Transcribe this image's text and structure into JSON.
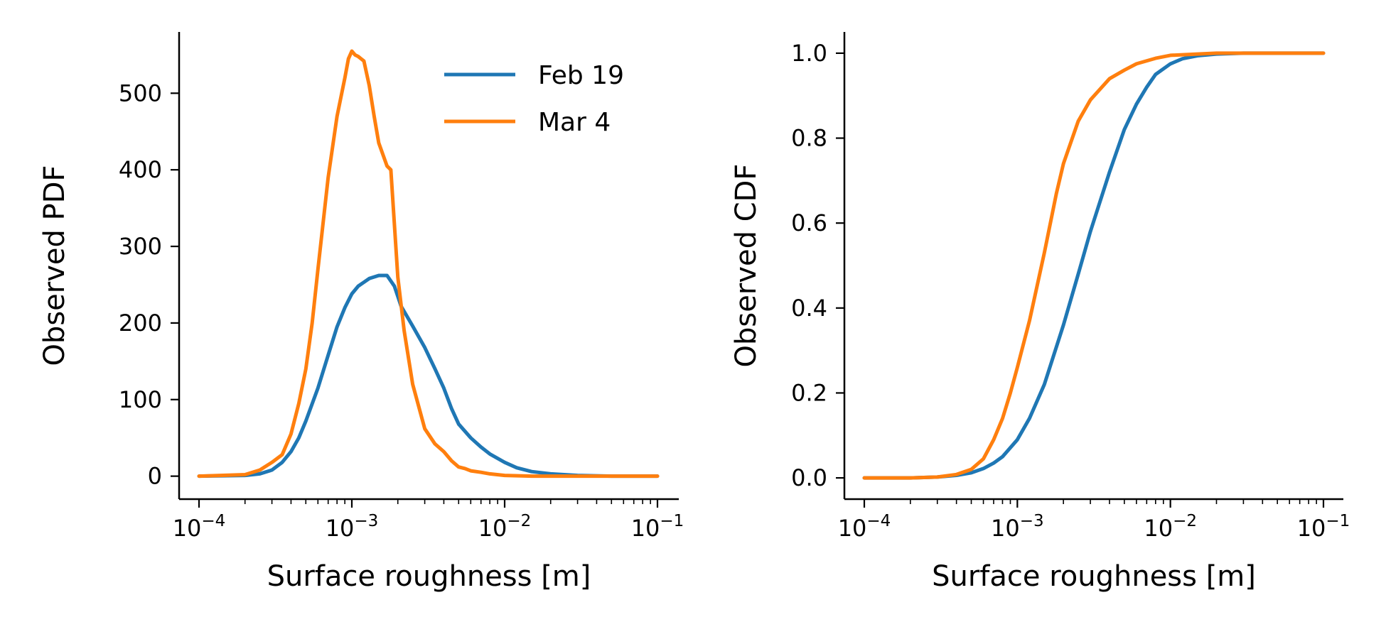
{
  "colors": {
    "feb19": "#1f77b4",
    "mar4": "#ff7f0e",
    "axis": "#000000",
    "background": "#ffffff"
  },
  "chart_data": [
    {
      "type": "line",
      "xscale": "log",
      "xlabel": "Surface roughness [m]",
      "ylabel": "Observed PDF",
      "xlim": [
        0.0001,
        0.1
      ],
      "ylim": [
        -30,
        580
      ],
      "xticks": [
        {
          "base": "10",
          "exp": "−4",
          "value": 0.0001
        },
        {
          "base": "10",
          "exp": "−3",
          "value": 0.001
        },
        {
          "base": "10",
          "exp": "−2",
          "value": 0.01
        },
        {
          "base": "10",
          "exp": "−1",
          "value": 0.1
        }
      ],
      "yticks": [
        {
          "label": "0",
          "value": 0
        },
        {
          "label": "100",
          "value": 100
        },
        {
          "label": "200",
          "value": 200
        },
        {
          "label": "300",
          "value": 300
        },
        {
          "label": "400",
          "value": 400
        },
        {
          "label": "500",
          "value": 500
        }
      ],
      "legend": {
        "location": "upper right",
        "entries": [
          "Feb 19",
          "Mar 4"
        ]
      },
      "grid": false,
      "series": [
        {
          "name": "Feb 19",
          "color": "#1f77b4",
          "x": [
            0.0001,
            0.0002,
            0.00025,
            0.0003,
            0.00035,
            0.0004,
            0.00045,
            0.0005,
            0.0006,
            0.0007,
            0.0008,
            0.0009,
            0.001,
            0.0011,
            0.0013,
            0.0015,
            0.0017,
            0.0019,
            0.0021,
            0.0025,
            0.003,
            0.0035,
            0.004,
            0.0045,
            0.005,
            0.006,
            0.007,
            0.008,
            0.01,
            0.012,
            0.015,
            0.02,
            0.03,
            0.05,
            0.1
          ],
          "y": [
            0,
            1,
            3,
            8,
            18,
            32,
            50,
            72,
            115,
            158,
            195,
            220,
            238,
            248,
            258,
            262,
            262,
            248,
            222,
            196,
            168,
            140,
            115,
            88,
            68,
            50,
            38,
            29,
            18,
            11,
            6,
            3,
            1,
            0,
            0
          ]
        },
        {
          "name": "Mar 4",
          "color": "#ff7f0e",
          "x": [
            0.0001,
            0.0002,
            0.00025,
            0.0003,
            0.00035,
            0.0004,
            0.00045,
            0.0005,
            0.00055,
            0.0006,
            0.0007,
            0.0008,
            0.0009,
            0.00095,
            0.001,
            0.00105,
            0.0011,
            0.0012,
            0.0013,
            0.0014,
            0.0015,
            0.0017,
            0.0018,
            0.002,
            0.0022,
            0.0025,
            0.003,
            0.0035,
            0.004,
            0.0045,
            0.005,
            0.0055,
            0.006,
            0.007,
            0.008,
            0.01,
            0.015,
            0.02,
            0.05,
            0.1
          ],
          "y": [
            0,
            2,
            8,
            18,
            28,
            55,
            95,
            140,
            200,
            270,
            390,
            470,
            520,
            545,
            555,
            550,
            548,
            542,
            510,
            470,
            435,
            405,
            400,
            260,
            190,
            120,
            62,
            42,
            32,
            20,
            12,
            10,
            7,
            5,
            3,
            1,
            0,
            0,
            0,
            0
          ]
        }
      ]
    },
    {
      "type": "line",
      "xscale": "log",
      "xlabel": "Surface roughness [m]",
      "ylabel": "Observed CDF",
      "xlim": [
        0.0001,
        0.1
      ],
      "ylim": [
        -0.05,
        1.05
      ],
      "xticks": [
        {
          "base": "10",
          "exp": "−4",
          "value": 0.0001
        },
        {
          "base": "10",
          "exp": "−3",
          "value": 0.001
        },
        {
          "base": "10",
          "exp": "−2",
          "value": 0.01
        },
        {
          "base": "10",
          "exp": "−1",
          "value": 0.1
        }
      ],
      "yticks": [
        {
          "label": "0.0",
          "value": 0
        },
        {
          "label": "0.2",
          "value": 0.2
        },
        {
          "label": "0.4",
          "value": 0.4
        },
        {
          "label": "0.6",
          "value": 0.6
        },
        {
          "label": "0.8",
          "value": 0.8
        },
        {
          "label": "1.0",
          "value": 1.0
        }
      ],
      "grid": false,
      "series": [
        {
          "name": "Feb 19",
          "color": "#1f77b4",
          "x": [
            0.0001,
            0.0002,
            0.0003,
            0.0004,
            0.0005,
            0.0006,
            0.0007,
            0.0008,
            0.001,
            0.0012,
            0.0015,
            0.002,
            0.0025,
            0.003,
            0.004,
            0.005,
            0.006,
            0.007,
            0.008,
            0.01,
            0.012,
            0.015,
            0.02,
            0.03,
            0.05,
            0.1
          ],
          "y": [
            0,
            0,
            0.002,
            0.006,
            0.012,
            0.022,
            0.035,
            0.05,
            0.09,
            0.14,
            0.22,
            0.36,
            0.48,
            0.58,
            0.72,
            0.82,
            0.88,
            0.92,
            0.95,
            0.975,
            0.987,
            0.994,
            0.998,
            1.0,
            1.0,
            1.0
          ]
        },
        {
          "name": "Mar 4",
          "color": "#ff7f0e",
          "x": [
            0.0001,
            0.0002,
            0.0003,
            0.0004,
            0.0005,
            0.0006,
            0.0007,
            0.0008,
            0.0009,
            0.001,
            0.0012,
            0.0015,
            0.0018,
            0.002,
            0.0025,
            0.003,
            0.004,
            0.005,
            0.006,
            0.008,
            0.01,
            0.015,
            0.02,
            0.05,
            0.1
          ],
          "y": [
            0,
            0,
            0.002,
            0.008,
            0.02,
            0.045,
            0.09,
            0.14,
            0.2,
            0.26,
            0.37,
            0.53,
            0.67,
            0.74,
            0.84,
            0.89,
            0.94,
            0.96,
            0.975,
            0.988,
            0.995,
            0.998,
            1.0,
            1.0,
            1.0
          ]
        }
      ]
    }
  ]
}
